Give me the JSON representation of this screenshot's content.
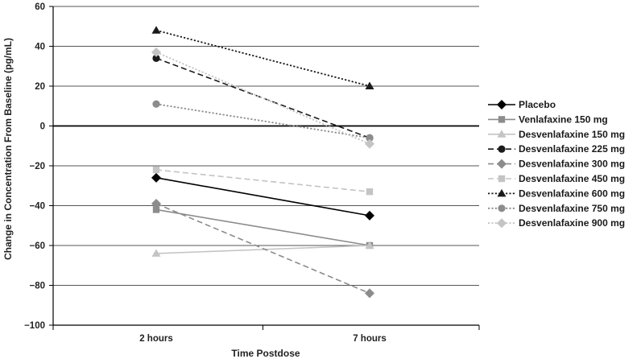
{
  "chart_data": {
    "type": "line",
    "title": "",
    "xlabel": "Time Postdose",
    "ylabel": "Change in Concentration From Baseline (pg/mL)",
    "categories": [
      "2 hours",
      "7 hours"
    ],
    "ylim": [
      -100,
      60
    ],
    "yticks": [
      60,
      40,
      20,
      0,
      -20,
      -40,
      -60,
      -80,
      -100
    ],
    "ytick_labels": [
      "60",
      "40",
      "20",
      "0",
      "−20",
      "−40",
      "−60",
      "−80",
      "−100"
    ],
    "grid": true,
    "legend_position": "right",
    "series": [
      {
        "name": "Placebo",
        "values": [
          -26,
          -45
        ],
        "color": "#000000",
        "dash": "solid",
        "marker": "diamond"
      },
      {
        "name": "Venlafaxine 150 mg",
        "values": [
          -42,
          -60
        ],
        "color": "#8c8c8c",
        "dash": "solid",
        "marker": "square"
      },
      {
        "name": "Desvenlafaxine 150 mg",
        "values": [
          -64,
          -60
        ],
        "color": "#c4c4c4",
        "dash": "solid",
        "marker": "triangle"
      },
      {
        "name": "Desvenlafaxine 225 mg",
        "values": [
          34,
          -6
        ],
        "color": "#1a1a1a",
        "dash": "dashed",
        "marker": "circle"
      },
      {
        "name": "Desvenlafaxine 300 mg",
        "values": [
          -39,
          -84
        ],
        "color": "#8c8c8c",
        "dash": "dashed",
        "marker": "diamond"
      },
      {
        "name": "Desvenlafaxine 450 mg",
        "values": [
          -22,
          -33
        ],
        "color": "#c4c4c4",
        "dash": "dashed",
        "marker": "square"
      },
      {
        "name": "Desvenlafaxine 600 mg",
        "values": [
          48,
          20
        ],
        "color": "#1a1a1a",
        "dash": "dotted",
        "marker": "triangle"
      },
      {
        "name": "Desvenlafaxine 750 mg",
        "values": [
          11,
          -6
        ],
        "color": "#8c8c8c",
        "dash": "dotted",
        "marker": "circle"
      },
      {
        "name": "Desvenlafaxine 900 mg",
        "values": [
          37,
          -9
        ],
        "color": "#c4c4c4",
        "dash": "dotted",
        "marker": "diamond"
      }
    ]
  }
}
